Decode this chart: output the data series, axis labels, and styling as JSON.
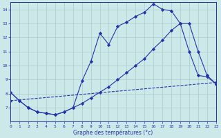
{
  "xlabel": "Graphe des températures (°c)",
  "bg_color": "#cce8e8",
  "grid_color": "#aacccc",
  "line_color": "#2233aa",
  "xlim": [
    0,
    23
  ],
  "ylim": [
    6,
    14.5
  ],
  "xticks": [
    0,
    1,
    2,
    3,
    4,
    5,
    6,
    7,
    8,
    9,
    10,
    11,
    12,
    13,
    14,
    15,
    16,
    17,
    18,
    19,
    20,
    21,
    22,
    23
  ],
  "yticks": [
    7,
    8,
    9,
    10,
    11,
    12,
    13,
    14
  ],
  "series1_x": [
    0,
    1,
    2,
    3,
    4,
    5,
    6,
    7,
    8,
    9,
    10,
    11,
    12,
    13,
    14,
    15,
    16,
    17,
    18,
    19,
    20,
    21,
    22,
    23
  ],
  "series1_y": [
    8.1,
    7.5,
    7.0,
    6.7,
    6.6,
    6.5,
    6.7,
    7.0,
    8.9,
    10.3,
    12.3,
    11.5,
    12.8,
    13.1,
    13.5,
    13.8,
    14.4,
    14.0,
    13.9,
    13.0,
    11.0,
    9.3,
    9.2,
    8.7
  ],
  "series2_x": [
    0,
    1,
    2,
    3,
    4,
    5,
    6,
    7,
    8,
    9,
    10,
    11,
    12,
    13,
    14,
    15,
    16,
    17,
    18,
    19,
    20,
    21,
    22,
    23
  ],
  "series2_y": [
    8.1,
    7.5,
    7.0,
    6.7,
    6.6,
    6.5,
    6.7,
    7.0,
    7.3,
    7.7,
    8.1,
    8.5,
    9.0,
    9.5,
    10.0,
    10.5,
    11.2,
    11.8,
    12.5,
    13.0,
    13.0,
    11.0,
    9.3,
    8.7
  ],
  "series3_x": [
    0,
    23
  ],
  "series3_y": [
    7.5,
    8.8
  ]
}
